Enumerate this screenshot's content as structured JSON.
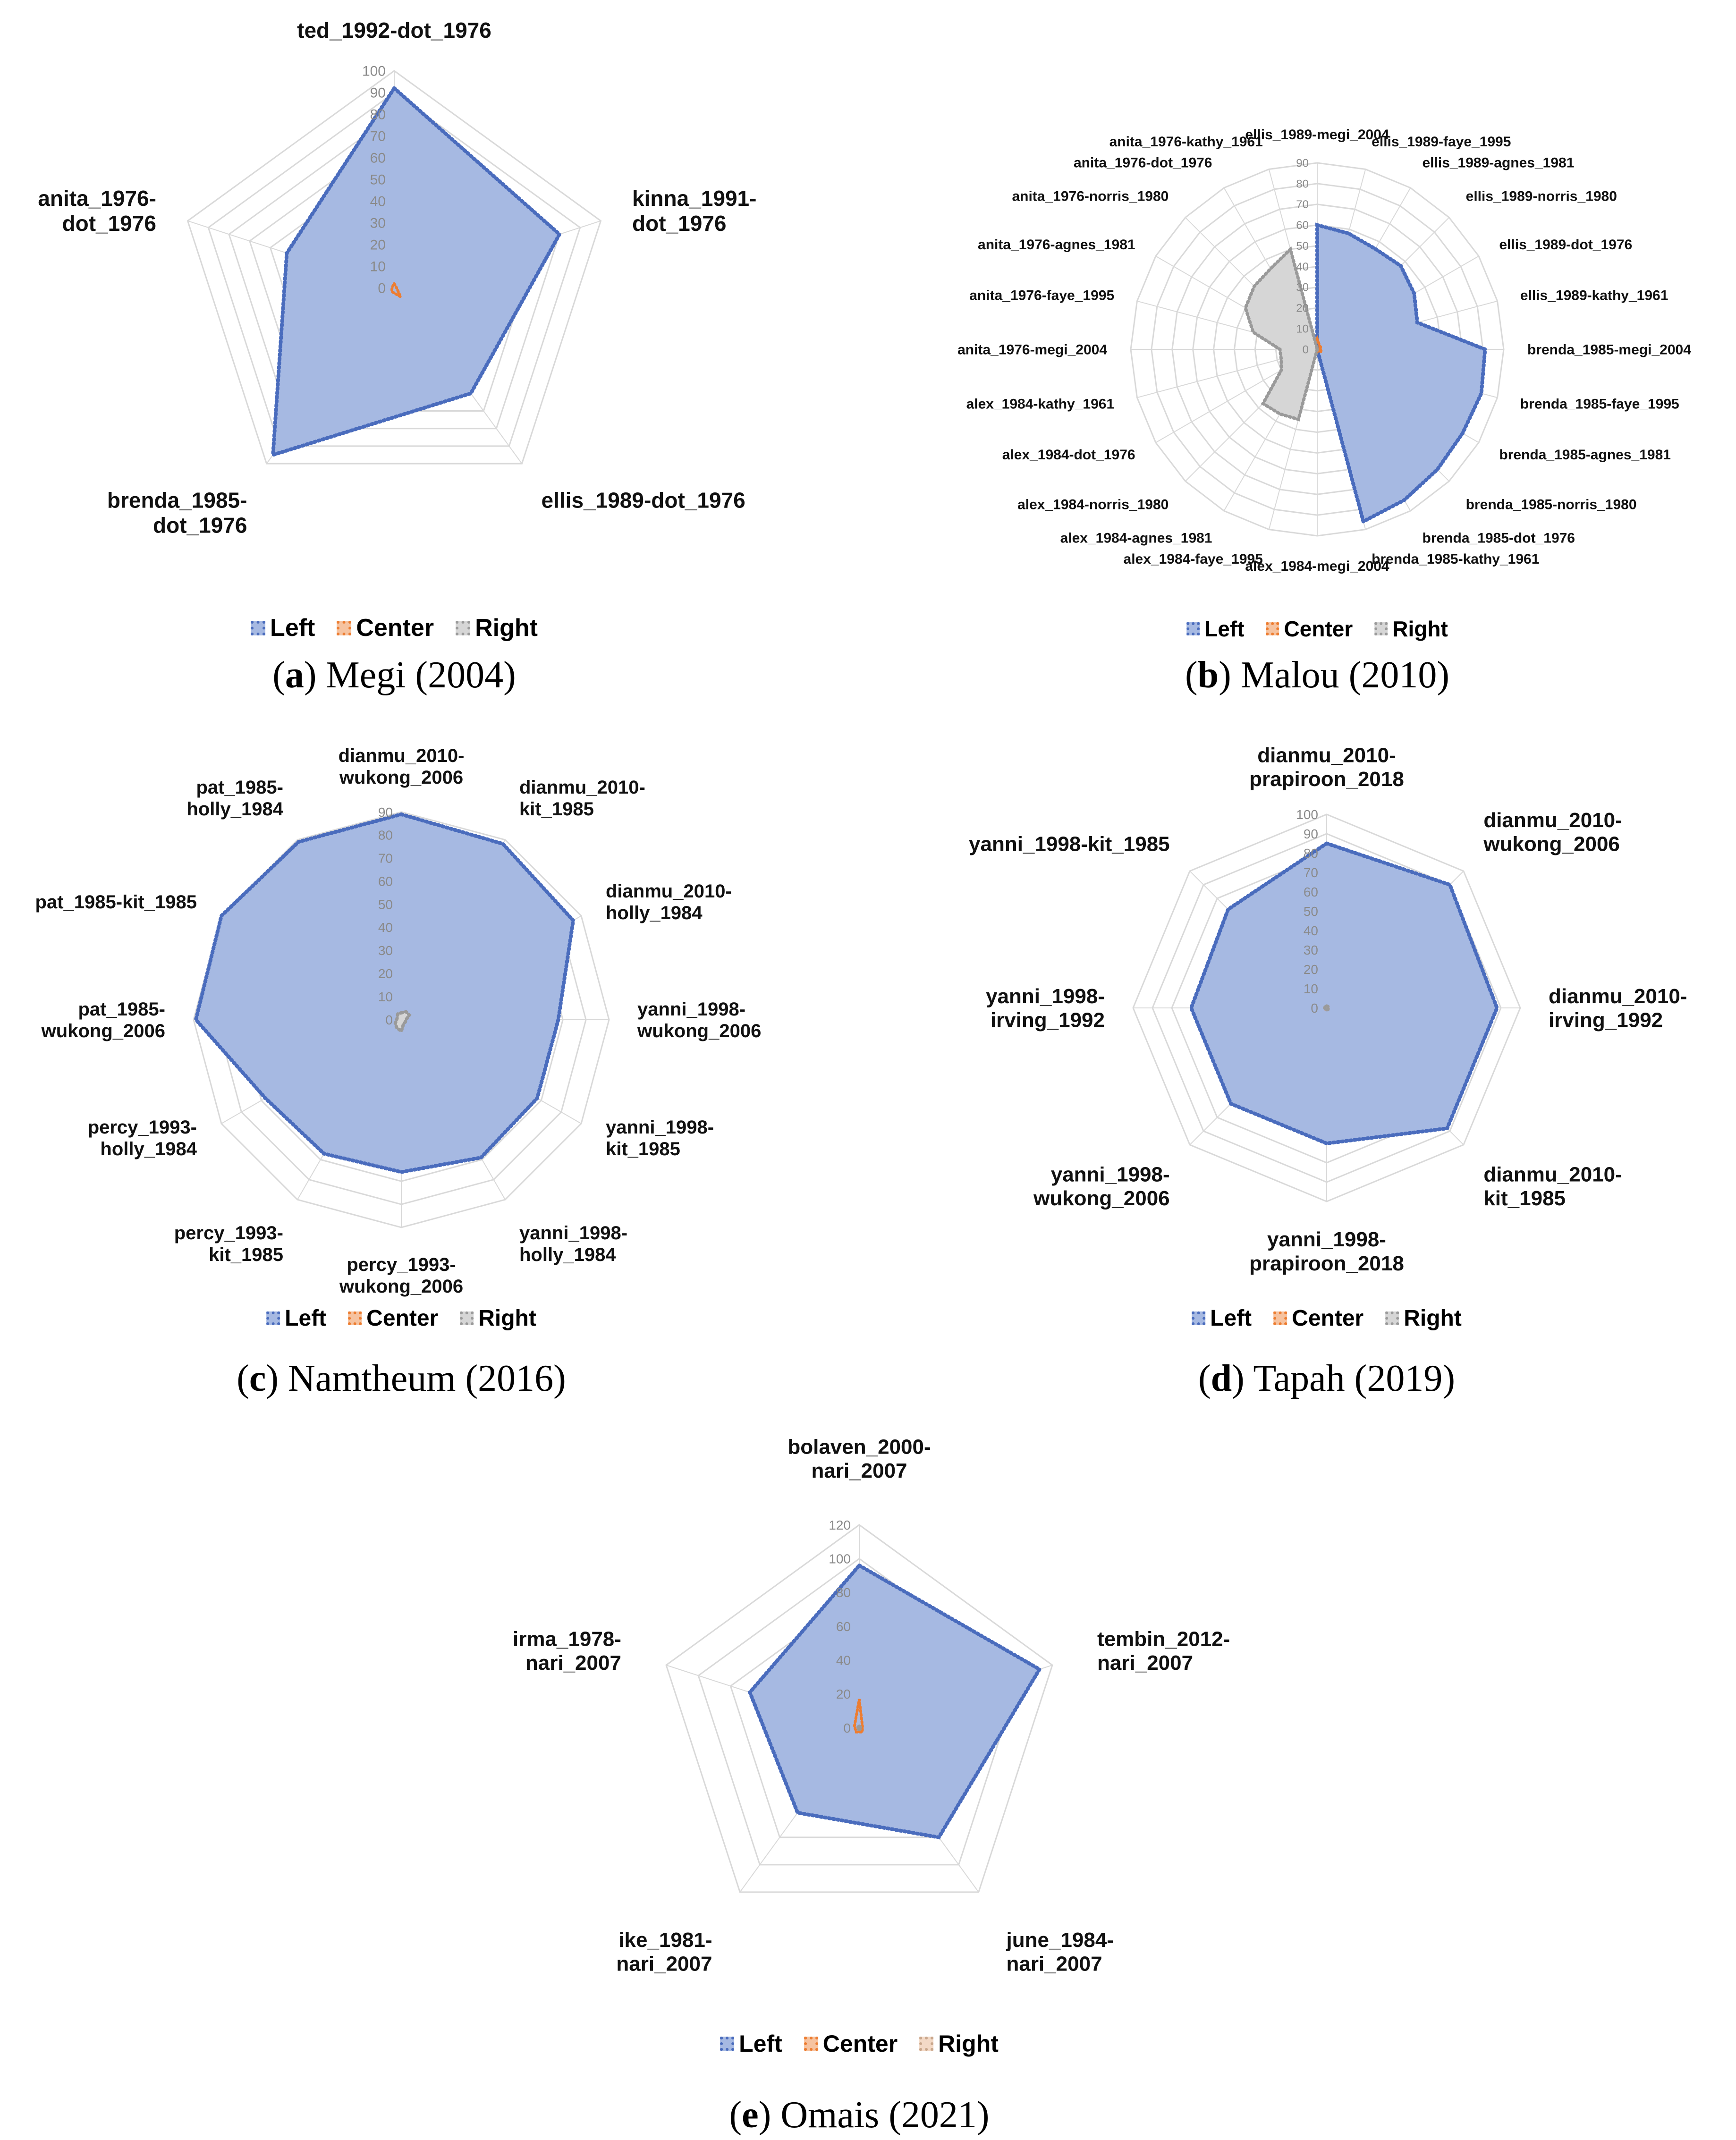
{
  "chart_data": [
    {
      "id": "a",
      "type": "radar",
      "caption_letter": "a",
      "caption_text": " Megi (2004)",
      "rmax": 100,
      "ticks": [
        0,
        10,
        20,
        30,
        40,
        50,
        60,
        70,
        80,
        90,
        100
      ],
      "axes": [
        "ted_1992-dot_1976",
        "kinna_1991-dot_1976",
        "ellis_1989-dot_1976",
        "brenda_1985-dot_1976",
        "anita_1976-dot_1976"
      ],
      "axis_label_lines": [
        [
          "ted_1992-dot_1976"
        ],
        [
          "kinna_1991-",
          "dot_1976"
        ],
        [
          "ellis_1989-dot_1976"
        ],
        [
          "brenda_1985-",
          "dot_1976"
        ],
        [
          "anita_1976-",
          "dot_1976"
        ]
      ],
      "series": [
        {
          "name": "Left",
          "values": [
            92,
            80,
            60,
            95,
            52
          ]
        },
        {
          "name": "Center",
          "values": [
            2,
            1,
            5,
            2,
            1
          ]
        }
      ],
      "legend": [
        "Left",
        "Center",
        "Right"
      ]
    },
    {
      "id": "b",
      "type": "radar",
      "caption_letter": "b",
      "caption_text": " Malou (2010)",
      "rmax": 90,
      "ticks": [
        0,
        10,
        20,
        30,
        40,
        50,
        60,
        70,
        80,
        90
      ],
      "axes": [
        "ellis_1989-megi_2004",
        "ellis_1989-faye_1995",
        "ellis_1989-agnes_1981",
        "ellis_1989-norris_1980",
        "ellis_1989-dot_1976",
        "ellis_1989-kathy_1961",
        "brenda_1985-megi_2004",
        "brenda_1985-faye_1995",
        "brenda_1985-agnes_1981",
        "brenda_1985-norris_1980",
        "brenda_1985-dot_1976",
        "brenda_1985-kathy_1961",
        "alex_1984-megi_2004",
        "alex_1984-faye_1995",
        "alex_1984-agnes_1981",
        "alex_1984-norris_1980",
        "alex_1984-dot_1976",
        "alex_1984-kathy_1961",
        "anita_1976-megi_2004",
        "anita_1976-faye_1995",
        "anita_1976-agnes_1981",
        "anita_1976-norris_1980",
        "anita_1976-dot_1976",
        "anita_1976-kathy_1961"
      ],
      "axis_label_lines": [
        [
          "ellis_1989-megi_2004"
        ],
        [
          "ellis_1989-faye_1995"
        ],
        [
          "ellis_1989-agnes_1981"
        ],
        [
          "ellis_1989-norris_1980"
        ],
        [
          "ellis_1989-dot_1976"
        ],
        [
          "ellis_1989-kathy_1961"
        ],
        [
          "brenda_1985-megi_2004"
        ],
        [
          "brenda_1985-faye_1995"
        ],
        [
          "brenda_1985-agnes_1981"
        ],
        [
          "brenda_1985-norris_1980"
        ],
        [
          "brenda_1985-dot_1976"
        ],
        [
          "brenda_1985-kathy_1961"
        ],
        [
          "alex_1984-megi_2004"
        ],
        [
          "alex_1984-faye_1995"
        ],
        [
          "alex_1984-agnes_1981"
        ],
        [
          "alex_1984-norris_1980"
        ],
        [
          "alex_1984-dot_1976"
        ],
        [
          "alex_1984-kathy_1961"
        ],
        [
          "anita_1976-megi_2004"
        ],
        [
          "anita_1976-faye_1995"
        ],
        [
          "anita_1976-agnes_1981"
        ],
        [
          "anita_1976-norris_1980"
        ],
        [
          "anita_1976-dot_1976"
        ],
        [
          "anita_1976-kathy_1961"
        ]
      ],
      "series": [
        {
          "name": "Left",
          "values": [
            60,
            58,
            56,
            57,
            54,
            50,
            81,
            82,
            81,
            82,
            84,
            86,
            0,
            0,
            0,
            0,
            0,
            0,
            0,
            0,
            0,
            0,
            0,
            0
          ]
        },
        {
          "name": "Center",
          "values": [
            5,
            3,
            2,
            2,
            2,
            1,
            2,
            2,
            2,
            1,
            1,
            1,
            1,
            1,
            1,
            1,
            2,
            2,
            3,
            3,
            4,
            4,
            3,
            3
          ]
        },
        {
          "name": "Right",
          "values": [
            0,
            0,
            0,
            0,
            0,
            0,
            0,
            0,
            0,
            0,
            0,
            0,
            0,
            35,
            36,
            37,
            20,
            18,
            18,
            32,
            40,
            43,
            45,
            50
          ]
        }
      ],
      "legend": [
        "Left",
        "Center",
        "Right"
      ]
    },
    {
      "id": "c",
      "type": "radar",
      "caption_letter": "c",
      "caption_text": " Namtheum (2016)",
      "rmax": 90,
      "ticks": [
        0,
        10,
        20,
        30,
        40,
        50,
        60,
        70,
        80,
        90
      ],
      "axes": [
        "dianmu_2010-wukong_2006",
        "dianmu_2010-kit_1985",
        "dianmu_2010-holly_1984",
        "yanni_1998-wukong_2006",
        "yanni_1998-kit_1985",
        "yanni_1998-holly_1984",
        "percy_1993-wukong_2006",
        "percy_1993-kit_1985",
        "percy_1993-holly_1984",
        "pat_1985-wukong_2006",
        "pat_1985-kit_1985",
        "pat_1985-holly_1984"
      ],
      "axis_label_lines": [
        [
          "dianmu_2010-",
          "wukong_2006"
        ],
        [
          "dianmu_2010-",
          "kit_1985"
        ],
        [
          "dianmu_2010-",
          "holly_1984"
        ],
        [
          "yanni_1998-",
          "wukong_2006"
        ],
        [
          "yanni_1998-",
          "kit_1985"
        ],
        [
          "yanni_1998-",
          "holly_1984"
        ],
        [
          "percy_1993-",
          "wukong_2006"
        ],
        [
          "percy_1993-",
          "kit_1985"
        ],
        [
          "percy_1993-",
          "holly_1984"
        ],
        [
          "pat_1985-",
          "wukong_2006"
        ],
        [
          "pat_1985-kit_1985"
        ],
        [
          "pat_1985-",
          "holly_1984"
        ]
      ],
      "series": [
        {
          "name": "Left",
          "values": [
            89,
            88,
            86,
            68,
            68,
            69,
            66,
            67,
            68,
            89,
            90,
            89
          ]
        },
        {
          "name": "Center",
          "values": [
            1,
            1,
            1,
            1,
            1,
            1,
            1,
            1,
            1,
            1,
            1,
            1
          ]
        },
        {
          "name": "Right",
          "values": [
            3,
            4,
            4,
            2,
            2,
            2,
            5,
            4,
            3,
            2,
            2,
            3
          ]
        }
      ],
      "legend": [
        "Left",
        "Center",
        "Right"
      ]
    },
    {
      "id": "d",
      "type": "radar",
      "caption_letter": "d",
      "caption_text": " Tapah (2019)",
      "rmax": 100,
      "ticks": [
        0,
        10,
        20,
        30,
        40,
        50,
        60,
        70,
        80,
        90,
        100
      ],
      "axes": [
        "dianmu_2010-prapiroon_2018",
        "dianmu_2010-wukong_2006",
        "dianmu_2010-irving_1992",
        "dianmu_2010-kit_1985",
        "yanni_1998-prapiroon_2018",
        "yanni_1998-wukong_2006",
        "yanni_1998-irving_1992",
        "yanni_1998-kit_1985"
      ],
      "axis_label_lines": [
        [
          "dianmu_2010-",
          "prapiroon_2018"
        ],
        [
          "dianmu_2010-",
          "wukong_2006"
        ],
        [
          "dianmu_2010-",
          "irving_1992"
        ],
        [
          "dianmu_2010-",
          "kit_1985"
        ],
        [
          "yanni_1998-",
          "prapiroon_2018"
        ],
        [
          "yanni_1998-",
          "wukong_2006"
        ],
        [
          "yanni_1998-",
          "irving_1992"
        ],
        [
          "yanni_1998-kit_1985"
        ]
      ],
      "series": [
        {
          "name": "Left",
          "values": [
            85,
            90,
            88,
            88,
            70,
            70,
            70,
            72
          ]
        },
        {
          "name": "Center",
          "values": [
            1,
            1,
            1,
            1,
            1,
            1,
            1,
            1
          ]
        },
        {
          "name": "Right",
          "values": [
            1,
            1,
            1,
            1,
            1,
            1,
            1,
            1
          ]
        }
      ],
      "legend": [
        "Left",
        "Center",
        "Right"
      ]
    },
    {
      "id": "e",
      "type": "radar",
      "caption_letter": "e",
      "caption_text": " Omais (2021)",
      "rmax": 120,
      "ticks": [
        0,
        20,
        40,
        60,
        80,
        100,
        120
      ],
      "axes": [
        "bolaven_2000-nari_2007",
        "tembin_2012-nari_2007",
        "june_1984-nari_2007",
        "ike_1981-nari_2007",
        "irma_1978-nari_2007"
      ],
      "axis_label_lines": [
        [
          "bolaven_2000-",
          "nari_2007"
        ],
        [
          "tembin_2012-",
          "nari_2007"
        ],
        [
          "june_1984-",
          "nari_2007"
        ],
        [
          "ike_1981-",
          "nari_2007"
        ],
        [
          "irma_1978-",
          "nari_2007"
        ]
      ],
      "series": [
        {
          "name": "Left",
          "values": [
            96,
            112,
            80,
            62,
            68
          ]
        },
        {
          "name": "Center",
          "values": [
            17,
            2,
            3,
            3,
            3
          ]
        },
        {
          "name": "Right",
          "values": [
            1,
            1,
            1,
            1,
            1
          ]
        }
      ],
      "legend": [
        "Left",
        "Center",
        "Right"
      ]
    }
  ],
  "colors": {
    "Left_fill": "#a6b9e2",
    "Left_stroke": "#4a6cbd",
    "Center": "#ed7d31",
    "Right_fill": "#d6d6d6",
    "Right_stroke": "#9a9a9a",
    "grid": "#d9d9d9",
    "tick": "#8a8a8a"
  }
}
